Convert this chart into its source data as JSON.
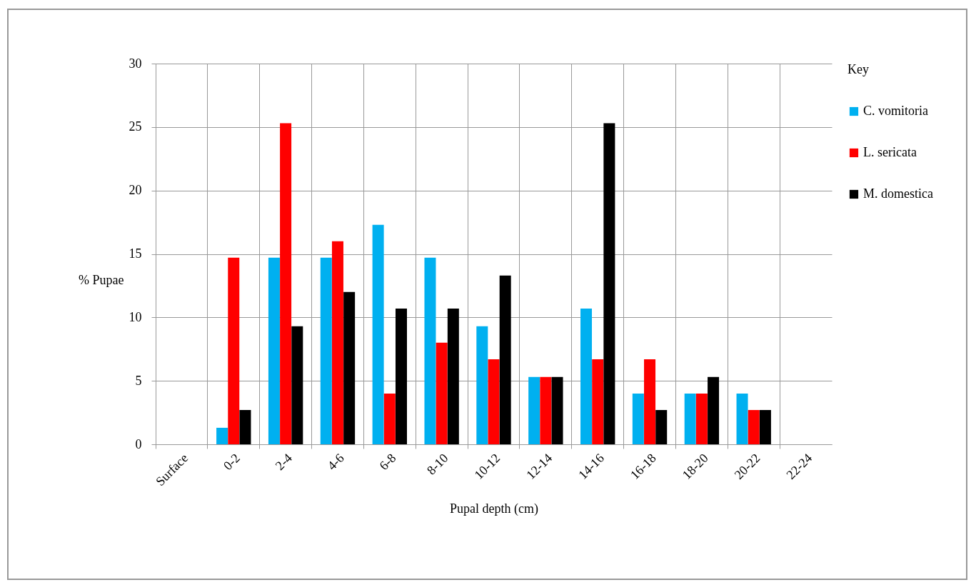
{
  "chart_data": {
    "type": "bar",
    "xlabel": "Pupal depth (cm)",
    "ylabel": "% Pupae",
    "legend_title": "Key",
    "categories": [
      "Surface",
      "0-2",
      "2-4",
      "4-6",
      "6-8",
      "8-10",
      "10-12",
      "12-14",
      "14-16",
      "16-18",
      "18-20",
      "20-22",
      "22-24"
    ],
    "series": [
      {
        "name": "C. vomitoria",
        "color": "#00b0f0",
        "values": [
          0,
          1.3,
          14.7,
          14.7,
          17.3,
          14.7,
          9.3,
          5.3,
          10.7,
          4,
          4,
          4,
          0
        ]
      },
      {
        "name": "L. sericata",
        "color": "#ff0000",
        "values": [
          0,
          14.7,
          25.3,
          16,
          4,
          8,
          6.7,
          5.3,
          6.7,
          6.7,
          4,
          2.7,
          0
        ]
      },
      {
        "name": "M. domestica",
        "color": "#000000",
        "values": [
          0,
          2.7,
          9.3,
          12,
          10.7,
          10.7,
          13.3,
          5.3,
          25.3,
          2.7,
          5.3,
          2.7,
          0
        ]
      }
    ],
    "ylim": [
      0,
      30
    ],
    "yticks": [
      0,
      5,
      10,
      15,
      20,
      25,
      30
    ],
    "grid": true,
    "legend": "right"
  }
}
